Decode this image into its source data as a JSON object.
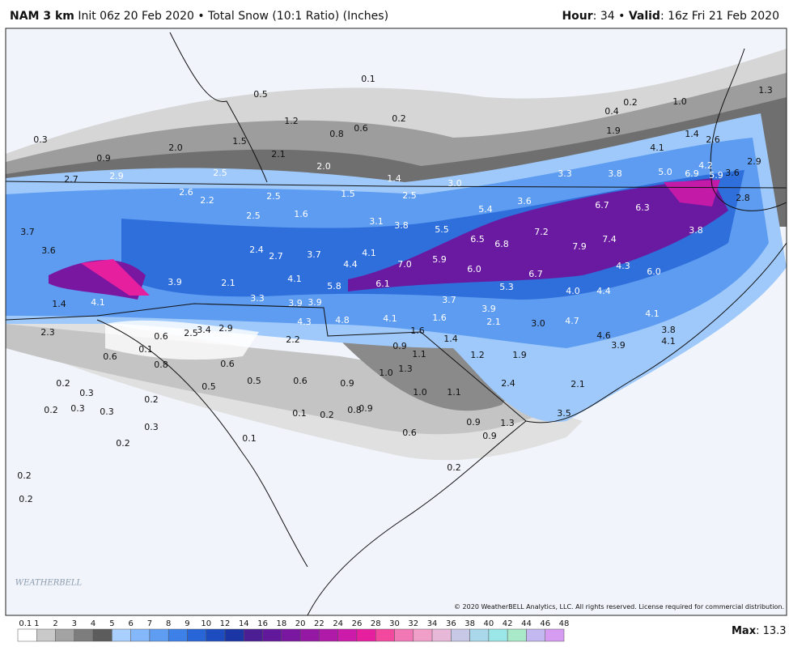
{
  "header": {
    "model": "NAM 3 km",
    "description": "Init 06z 20 Feb 2020 • Total Snow (10:1 Ratio) (Inches)",
    "hour_label": "Hour",
    "hour_value": ": 34 • ",
    "valid_label": "Valid",
    "valid_value": ": 16z Fri 21 Feb 2020"
  },
  "map_labels": [
    "0.1",
    "0.5",
    "1.2",
    "0.8",
    "0.6",
    "0.2",
    "0.3",
    "1.5",
    "2.0",
    "2.1",
    "0.9",
    "2.0",
    "2.7",
    "2.9",
    "2.5",
    "1.4",
    "3.0",
    "3.3",
    "3.8",
    "5.0",
    "6.9",
    "5.9",
    "4.2",
    "3.6",
    "2.6",
    "2.2",
    "2.5",
    "1.5",
    "2.5",
    "3.6",
    "6.7",
    "6.3",
    "2.8",
    "1.6",
    "2.5",
    "3.1",
    "3.8",
    "5.4",
    "3.7",
    "5.5",
    "6.5",
    "6.8",
    "7.2",
    "7.9",
    "7.4",
    "3.8",
    "3.6",
    "2.4",
    "2.7",
    "3.7",
    "4.1",
    "4.4",
    "7.0",
    "5.9",
    "6.0",
    "4.3",
    "6.0",
    "6.7",
    "4.1",
    "3.9",
    "2.1",
    "5.8",
    "6.1",
    "5.3",
    "4.0",
    "4.4",
    "1.4",
    "4.1",
    "3.3",
    "3.9",
    "3.9",
    "3.7",
    "3.9",
    "4.1",
    "4.3",
    "4.8",
    "4.1",
    "2.1",
    "3.0",
    "4.7",
    "2.3",
    "0.6",
    "2.5",
    "3.4",
    "2.9",
    "1.6",
    "1.6",
    "4.6",
    "3.8",
    "4.1",
    "2.2",
    "0.1",
    "0.9",
    "1.4",
    "3.9",
    "0.6",
    "0.8",
    "1.1",
    "1.2",
    "1.9",
    "0.6",
    "1.3",
    "1.0",
    "0.2",
    "0.5",
    "0.6",
    "0.9",
    "2.4",
    "2.1",
    "0.3",
    "0.5",
    "1.0",
    "1.1",
    "0.2",
    "0.3",
    "0.2",
    "0.3",
    "0.1",
    "0.2",
    "0.8",
    "0.9",
    "0.9",
    "3.5",
    "0.3",
    "1.3",
    "0.6",
    "0.9",
    "0.1",
    "0.2",
    "0.2",
    "0.2",
    "0.2",
    "1.0",
    "0.2",
    "0.4",
    "1.9",
    "1.3",
    "4.1",
    "1.4",
    "2.6",
    "2.9"
  ],
  "legend": {
    "ticks": [
      "0.1",
      "1",
      "2",
      "3",
      "4",
      "5",
      "6",
      "7",
      "8",
      "9",
      "10",
      "12",
      "14",
      "16",
      "18",
      "20",
      "22",
      "24",
      "26",
      "28",
      "30",
      "32",
      "34",
      "36",
      "38",
      "40",
      "42",
      "44",
      "46",
      "48"
    ],
    "colors": [
      "#ffffff",
      "#c9c9c9",
      "#a3a3a3",
      "#7d7d7d",
      "#5c5c5c",
      "#a9d0ff",
      "#85b8fa",
      "#5f9df2",
      "#3d80e8",
      "#2865d6",
      "#1d4cc0",
      "#1b36a4",
      "#4b1f93",
      "#62189a",
      "#7a17a0",
      "#9418a4",
      "#b01aa8",
      "#cc1aab",
      "#e61f9f",
      "#f2499f",
      "#f277b5",
      "#f0a0c8",
      "#e7b8d8",
      "#c7c7e6",
      "#a8d8ea",
      "#9be6e6",
      "#a9e8c8",
      "#c3b8f0",
      "#d69cf2"
    ],
    "max_label": "Max",
    "max_value": ": 13.3"
  },
  "copyright": "© 2020 WeatherBELL Analytics, LLC. All rights reserved. License required for commercial distribution.",
  "logo": "WEATHERBELL"
}
